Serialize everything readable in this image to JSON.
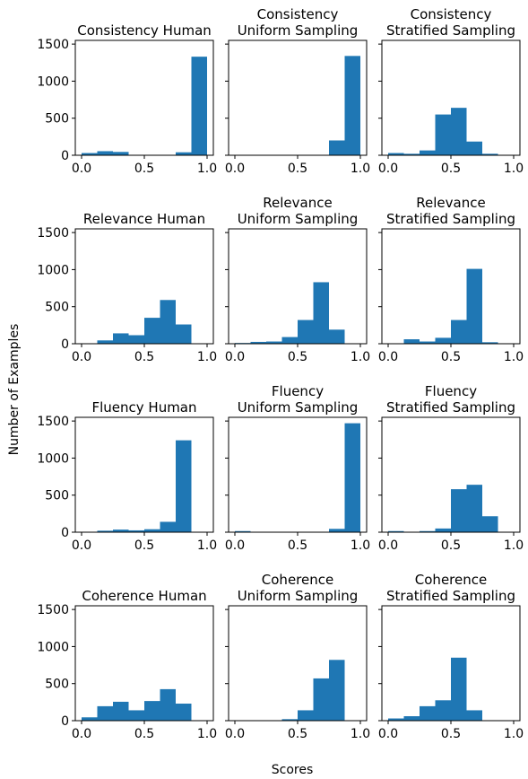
{
  "figure": {
    "xlabel": "Scores",
    "ylabel": "Number of Examples"
  },
  "chart_data": [
    {
      "type": "bar",
      "title_lines": [
        "Consistency Human"
      ],
      "xlim": [
        0,
        1
      ],
      "ylim": [
        0,
        1500
      ],
      "bins": [
        [
          0,
          0.125
        ],
        [
          0.125,
          0.25
        ],
        [
          0.25,
          0.375
        ],
        [
          0.375,
          0.5
        ],
        [
          0.5,
          0.625
        ],
        [
          0.625,
          0.75
        ],
        [
          0.75,
          0.875
        ],
        [
          0.875,
          1.0
        ]
      ],
      "values": [
        30,
        55,
        45,
        0,
        0,
        5,
        40,
        1330
      ],
      "xticks": [
        "0.0",
        "0.5",
        "1.0"
      ],
      "yticks": [
        "0",
        "500",
        "1000",
        "1500"
      ],
      "bar_color": "#1f77b4"
    },
    {
      "type": "bar",
      "title_lines": [
        "Consistency",
        "Uniform Sampling"
      ],
      "xlim": [
        0,
        1
      ],
      "ylim": [
        0,
        1500
      ],
      "bins": [
        [
          0,
          0.125
        ],
        [
          0.125,
          0.25
        ],
        [
          0.25,
          0.375
        ],
        [
          0.375,
          0.5
        ],
        [
          0.5,
          0.625
        ],
        [
          0.625,
          0.75
        ],
        [
          0.75,
          0.875
        ],
        [
          0.875,
          1.0
        ]
      ],
      "values": [
        0,
        0,
        0,
        0,
        0,
        0,
        200,
        1340
      ],
      "xticks": [
        "0.0",
        "0.5",
        "1.0"
      ],
      "yticks": [],
      "bar_color": "#1f77b4"
    },
    {
      "type": "bar",
      "title_lines": [
        "Consistency",
        "Stratified Sampling"
      ],
      "xlim": [
        0,
        1
      ],
      "ylim": [
        0,
        1500
      ],
      "bins": [
        [
          0,
          0.125
        ],
        [
          0.125,
          0.25
        ],
        [
          0.25,
          0.375
        ],
        [
          0.375,
          0.5
        ],
        [
          0.5,
          0.625
        ],
        [
          0.625,
          0.75
        ],
        [
          0.75,
          0.875
        ],
        [
          0.875,
          1.0
        ]
      ],
      "values": [
        30,
        20,
        65,
        550,
        640,
        185,
        20,
        0
      ],
      "xticks": [
        "0.0",
        "0.5",
        "1.0"
      ],
      "yticks": [],
      "bar_color": "#1f77b4"
    },
    {
      "type": "bar",
      "title_lines": [
        "Relevance Human"
      ],
      "xlim": [
        0,
        1
      ],
      "ylim": [
        0,
        1500
      ],
      "bins": [
        [
          0,
          0.125
        ],
        [
          0.125,
          0.25
        ],
        [
          0.25,
          0.375
        ],
        [
          0.375,
          0.5
        ],
        [
          0.5,
          0.625
        ],
        [
          0.625,
          0.75
        ],
        [
          0.75,
          0.875
        ],
        [
          0.875,
          1.0
        ]
      ],
      "values": [
        0,
        45,
        140,
        115,
        350,
        590,
        260,
        0
      ],
      "xticks": [
        "0.0",
        "0.5",
        "1.0"
      ],
      "yticks": [
        "0",
        "500",
        "1000",
        "1500"
      ],
      "bar_color": "#1f77b4"
    },
    {
      "type": "bar",
      "title_lines": [
        "Relevance",
        "Uniform Sampling"
      ],
      "xlim": [
        0,
        1
      ],
      "ylim": [
        0,
        1500
      ],
      "bins": [
        [
          0,
          0.125
        ],
        [
          0.125,
          0.25
        ],
        [
          0.25,
          0.375
        ],
        [
          0.375,
          0.5
        ],
        [
          0.5,
          0.625
        ],
        [
          0.625,
          0.75
        ],
        [
          0.75,
          0.875
        ],
        [
          0.875,
          1.0
        ]
      ],
      "values": [
        10,
        25,
        30,
        90,
        320,
        830,
        190,
        0
      ],
      "xticks": [
        "0.0",
        "0.5",
        "1.0"
      ],
      "yticks": [],
      "bar_color": "#1f77b4"
    },
    {
      "type": "bar",
      "title_lines": [
        "Relevance",
        "Stratified Sampling"
      ],
      "xlim": [
        0,
        1
      ],
      "ylim": [
        0,
        1500
      ],
      "bins": [
        [
          0,
          0.125
        ],
        [
          0.125,
          0.25
        ],
        [
          0.25,
          0.375
        ],
        [
          0.375,
          0.5
        ],
        [
          0.5,
          0.625
        ],
        [
          0.625,
          0.75
        ],
        [
          0.75,
          0.875
        ],
        [
          0.875,
          1.0
        ]
      ],
      "values": [
        0,
        60,
        30,
        80,
        320,
        1010,
        20,
        0
      ],
      "xticks": [
        "0.0",
        "0.5",
        "1.0"
      ],
      "yticks": [],
      "bar_color": "#1f77b4"
    },
    {
      "type": "bar",
      "title_lines": [
        "Fluency Human"
      ],
      "xlim": [
        0,
        1
      ],
      "ylim": [
        0,
        1500
      ],
      "bins": [
        [
          0,
          0.125
        ],
        [
          0.125,
          0.25
        ],
        [
          0.25,
          0.375
        ],
        [
          0.375,
          0.5
        ],
        [
          0.5,
          0.625
        ],
        [
          0.625,
          0.75
        ],
        [
          0.75,
          0.875
        ],
        [
          0.875,
          1.0
        ]
      ],
      "values": [
        0,
        20,
        35,
        25,
        40,
        140,
        1240,
        0
      ],
      "xticks": [
        "0.0",
        "0.5",
        "1.0"
      ],
      "yticks": [
        "0",
        "500",
        "1000",
        "1500"
      ],
      "bar_color": "#1f77b4"
    },
    {
      "type": "bar",
      "title_lines": [
        "Fluency",
        "Uniform Sampling"
      ],
      "xlim": [
        0,
        1
      ],
      "ylim": [
        0,
        1500
      ],
      "bins": [
        [
          0,
          0.125
        ],
        [
          0.125,
          0.25
        ],
        [
          0.25,
          0.375
        ],
        [
          0.375,
          0.5
        ],
        [
          0.5,
          0.625
        ],
        [
          0.625,
          0.75
        ],
        [
          0.75,
          0.875
        ],
        [
          0.875,
          1.0
        ]
      ],
      "values": [
        15,
        0,
        0,
        0,
        0,
        0,
        45,
        1470
      ],
      "xticks": [
        "0.0",
        "0.5",
        "1.0"
      ],
      "yticks": [],
      "bar_color": "#1f77b4"
    },
    {
      "type": "bar",
      "title_lines": [
        "Fluency",
        "Stratified Sampling"
      ],
      "xlim": [
        0,
        1
      ],
      "ylim": [
        0,
        1500
      ],
      "bins": [
        [
          0,
          0.125
        ],
        [
          0.125,
          0.25
        ],
        [
          0.25,
          0.375
        ],
        [
          0.375,
          0.5
        ],
        [
          0.5,
          0.625
        ],
        [
          0.625,
          0.75
        ],
        [
          0.75,
          0.875
        ],
        [
          0.875,
          1.0
        ]
      ],
      "values": [
        15,
        0,
        15,
        50,
        580,
        640,
        215,
        0
      ],
      "xticks": [
        "0.0",
        "0.5",
        "1.0"
      ],
      "yticks": [],
      "bar_color": "#1f77b4"
    },
    {
      "type": "bar",
      "title_lines": [
        "Coherence Human"
      ],
      "xlim": [
        0,
        1
      ],
      "ylim": [
        0,
        1500
      ],
      "bins": [
        [
          0,
          0.125
        ],
        [
          0.125,
          0.25
        ],
        [
          0.25,
          0.375
        ],
        [
          0.375,
          0.5
        ],
        [
          0.5,
          0.625
        ],
        [
          0.625,
          0.75
        ],
        [
          0.75,
          0.875
        ],
        [
          0.875,
          1.0
        ]
      ],
      "values": [
        45,
        195,
        255,
        140,
        265,
        425,
        230,
        0
      ],
      "xticks": [
        "0.0",
        "0.5",
        "1.0"
      ],
      "yticks": [
        "0",
        "500",
        "1000",
        "1500"
      ],
      "bar_color": "#1f77b4"
    },
    {
      "type": "bar",
      "title_lines": [
        "Coherence",
        "Uniform Sampling"
      ],
      "xlim": [
        0,
        1
      ],
      "ylim": [
        0,
        1500
      ],
      "bins": [
        [
          0,
          0.125
        ],
        [
          0.125,
          0.25
        ],
        [
          0.25,
          0.375
        ],
        [
          0.375,
          0.5
        ],
        [
          0.5,
          0.625
        ],
        [
          0.625,
          0.75
        ],
        [
          0.75,
          0.875
        ],
        [
          0.875,
          1.0
        ]
      ],
      "values": [
        5,
        5,
        0,
        20,
        140,
        570,
        820,
        0
      ],
      "xticks": [
        "0.0",
        "0.5",
        "1.0"
      ],
      "yticks": [],
      "bar_color": "#1f77b4"
    },
    {
      "type": "bar",
      "title_lines": [
        "Coherence",
        "Stratified Sampling"
      ],
      "xlim": [
        0,
        1
      ],
      "ylim": [
        0,
        1500
      ],
      "bins": [
        [
          0,
          0.125
        ],
        [
          0.125,
          0.25
        ],
        [
          0.25,
          0.375
        ],
        [
          0.375,
          0.5
        ],
        [
          0.5,
          0.625
        ],
        [
          0.625,
          0.75
        ],
        [
          0.75,
          0.875
        ],
        [
          0.875,
          1.0
        ]
      ],
      "values": [
        30,
        60,
        195,
        275,
        850,
        140,
        0,
        0
      ],
      "xticks": [
        "0.0",
        "0.5",
        "1.0"
      ],
      "yticks": [],
      "bar_color": "#1f77b4"
    }
  ]
}
